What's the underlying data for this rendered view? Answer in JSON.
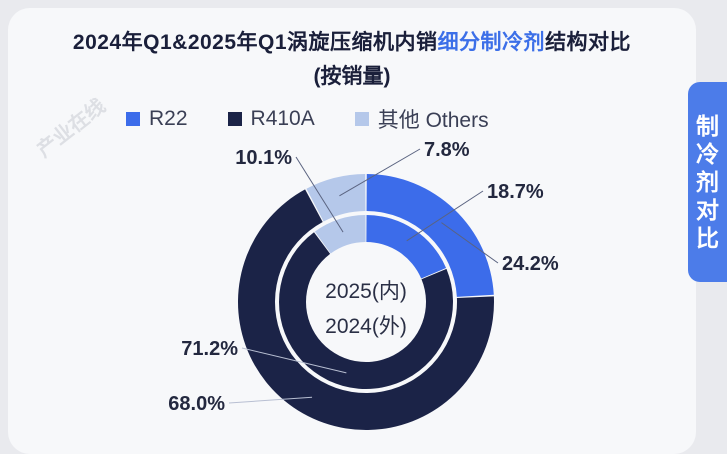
{
  "title": {
    "part1": "2024年Q1&2025年Q1涡旋压缩机内销",
    "highlight": "细分制冷剂",
    "part2": "结构对比",
    "subtitle": "(按销量)"
  },
  "side_tab": {
    "chars": [
      "制",
      "冷",
      "剂",
      "对",
      "比"
    ]
  },
  "watermark": "产业在线",
  "colors": {
    "R22": "#3c6cea",
    "R410A": "#1b2347",
    "Others": "#b5c8ea",
    "accent": "#4c7ce9"
  },
  "chart_data": {
    "type": "pie",
    "title": "2024年Q1&2025年Q1涡旋压缩机内销细分制冷剂结构对比 (按销量)",
    "categories": [
      "R22",
      "R410A",
      "其他 Others"
    ],
    "center_labels": [
      "2025(内)",
      "2024(外)"
    ],
    "series": [
      {
        "name": "2025(内)",
        "values": [
          18.7,
          71.2,
          10.1
        ],
        "labels": [
          "18.7%",
          "71.2%",
          "10.1%"
        ]
      },
      {
        "name": "2024(外)",
        "values": [
          24.2,
          68.0,
          7.8
        ],
        "labels": [
          "24.2%",
          "68.0%",
          "7.8%"
        ]
      }
    ],
    "legend_position": "top"
  }
}
